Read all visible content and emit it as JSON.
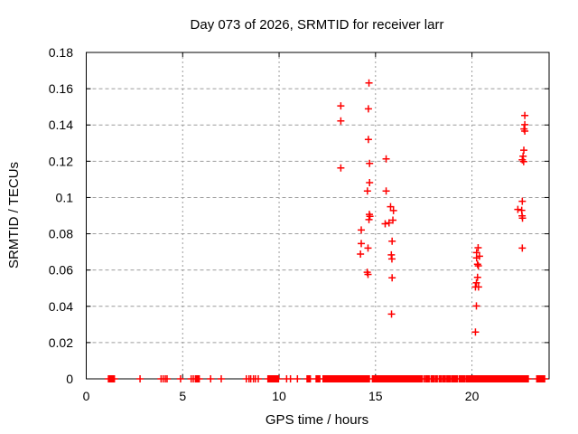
{
  "window": {
    "background": "#ffffff"
  },
  "chart_data": {
    "type": "scatter",
    "title": "Day 073 of 2026, SRMTID for receiver larr",
    "xlabel": "GPS time / hours",
    "ylabel": "SRMTID / TECUs",
    "xlim": [
      0,
      24
    ],
    "ylim": [
      0,
      0.18
    ],
    "xticks": {
      "values": [
        0,
        5,
        10,
        15,
        20
      ],
      "labels": [
        "0",
        "5",
        "10",
        "15",
        "20"
      ]
    },
    "yticks": {
      "values": [
        0,
        0.02,
        0.04,
        0.06,
        0.08,
        0.1,
        0.12,
        0.14,
        0.16,
        0.18
      ],
      "labels": [
        "0",
        "0.02",
        "0.04",
        "0.06",
        "0.08",
        "0.1",
        "0.12",
        "0.14",
        "0.16",
        "0.18"
      ]
    },
    "grid": true,
    "legend": "none",
    "marker": {
      "shape": "plus",
      "color": "#ff0000",
      "size": 8
    },
    "colors": {
      "marker": "#ff0000",
      "axis": "#000000",
      "grid": "#9c9c9c",
      "background": "#ffffff"
    },
    "series": [
      {
        "name": "SRMTID",
        "points": [
          [
            13.2,
            0.1505
          ],
          [
            13.2,
            0.1422
          ],
          [
            13.2,
            0.1163
          ],
          [
            14.66,
            0.1632
          ],
          [
            14.63,
            0.1489
          ],
          [
            14.63,
            0.132
          ],
          [
            14.69,
            0.1188
          ],
          [
            14.69,
            0.1082
          ],
          [
            14.58,
            0.1036
          ],
          [
            15.55,
            0.1213
          ],
          [
            15.55,
            0.1036
          ],
          [
            14.26,
            0.0821
          ],
          [
            14.26,
            0.0746
          ],
          [
            14.22,
            0.0688
          ],
          [
            14.66,
            0.0878
          ],
          [
            14.68,
            0.0907
          ],
          [
            14.71,
            0.0896
          ],
          [
            14.61,
            0.0721
          ],
          [
            14.57,
            0.0588
          ],
          [
            14.61,
            0.0576
          ],
          [
            15.5,
            0.0855
          ],
          [
            15.7,
            0.086
          ],
          [
            15.9,
            0.0875
          ],
          [
            15.78,
            0.0949
          ],
          [
            15.93,
            0.0928
          ],
          [
            15.86,
            0.0759
          ],
          [
            15.82,
            0.0684
          ],
          [
            15.85,
            0.0661
          ],
          [
            15.86,
            0.0557
          ],
          [
            15.83,
            0.0357
          ],
          [
            20.32,
            0.0723
          ],
          [
            20.24,
            0.0696
          ],
          [
            20.39,
            0.0676
          ],
          [
            20.24,
            0.0667
          ],
          [
            20.29,
            0.0632
          ],
          [
            20.33,
            0.0623
          ],
          [
            20.29,
            0.056
          ],
          [
            20.23,
            0.053
          ],
          [
            20.18,
            0.0507
          ],
          [
            20.34,
            0.0507
          ],
          [
            20.23,
            0.0402
          ],
          [
            20.18,
            0.0258
          ],
          [
            22.74,
            0.1452
          ],
          [
            22.74,
            0.1402
          ],
          [
            22.7,
            0.1378
          ],
          [
            22.74,
            0.1366
          ],
          [
            22.69,
            0.1261
          ],
          [
            22.65,
            0.1228
          ],
          [
            22.61,
            0.1208
          ],
          [
            22.68,
            0.1198
          ],
          [
            22.61,
            0.0979
          ],
          [
            22.38,
            0.0934
          ],
          [
            22.58,
            0.0929
          ],
          [
            22.6,
            0.0899
          ],
          [
            22.62,
            0.0886
          ],
          [
            22.61,
            0.0721
          ]
        ]
      }
    ],
    "baseline": {
      "y": 0,
      "singles": [
        2.79,
        3.88,
        3.99,
        4.1,
        4.19,
        4.89,
        5.44,
        5.55,
        6.45,
        7.0,
        8.3,
        8.44,
        8.53,
        8.67,
        8.77,
        8.92,
        10.39,
        10.59,
        10.95,
        17.42,
        17.52
      ],
      "segments": [
        [
          1.15,
          1.46
        ],
        [
          5.66,
          5.86
        ],
        [
          9.42,
          9.97
        ],
        [
          11.45,
          11.62
        ],
        [
          11.92,
          12.11
        ],
        [
          12.28,
          12.49
        ],
        [
          12.56,
          14.14
        ],
        [
          14.2,
          14.68
        ],
        [
          14.84,
          15.93
        ],
        [
          16.0,
          17.35
        ],
        [
          17.6,
          17.78
        ],
        [
          17.88,
          18.02
        ],
        [
          18.1,
          18.2
        ],
        [
          18.3,
          18.42
        ],
        [
          18.5,
          18.62
        ],
        [
          18.7,
          18.87
        ],
        [
          18.95,
          19.25
        ],
        [
          19.35,
          19.62
        ],
        [
          19.7,
          19.85
        ],
        [
          19.9,
          21.05
        ],
        [
          21.1,
          21.33
        ],
        [
          21.4,
          22.92
        ],
        [
          23.36,
          23.77
        ]
      ]
    }
  }
}
